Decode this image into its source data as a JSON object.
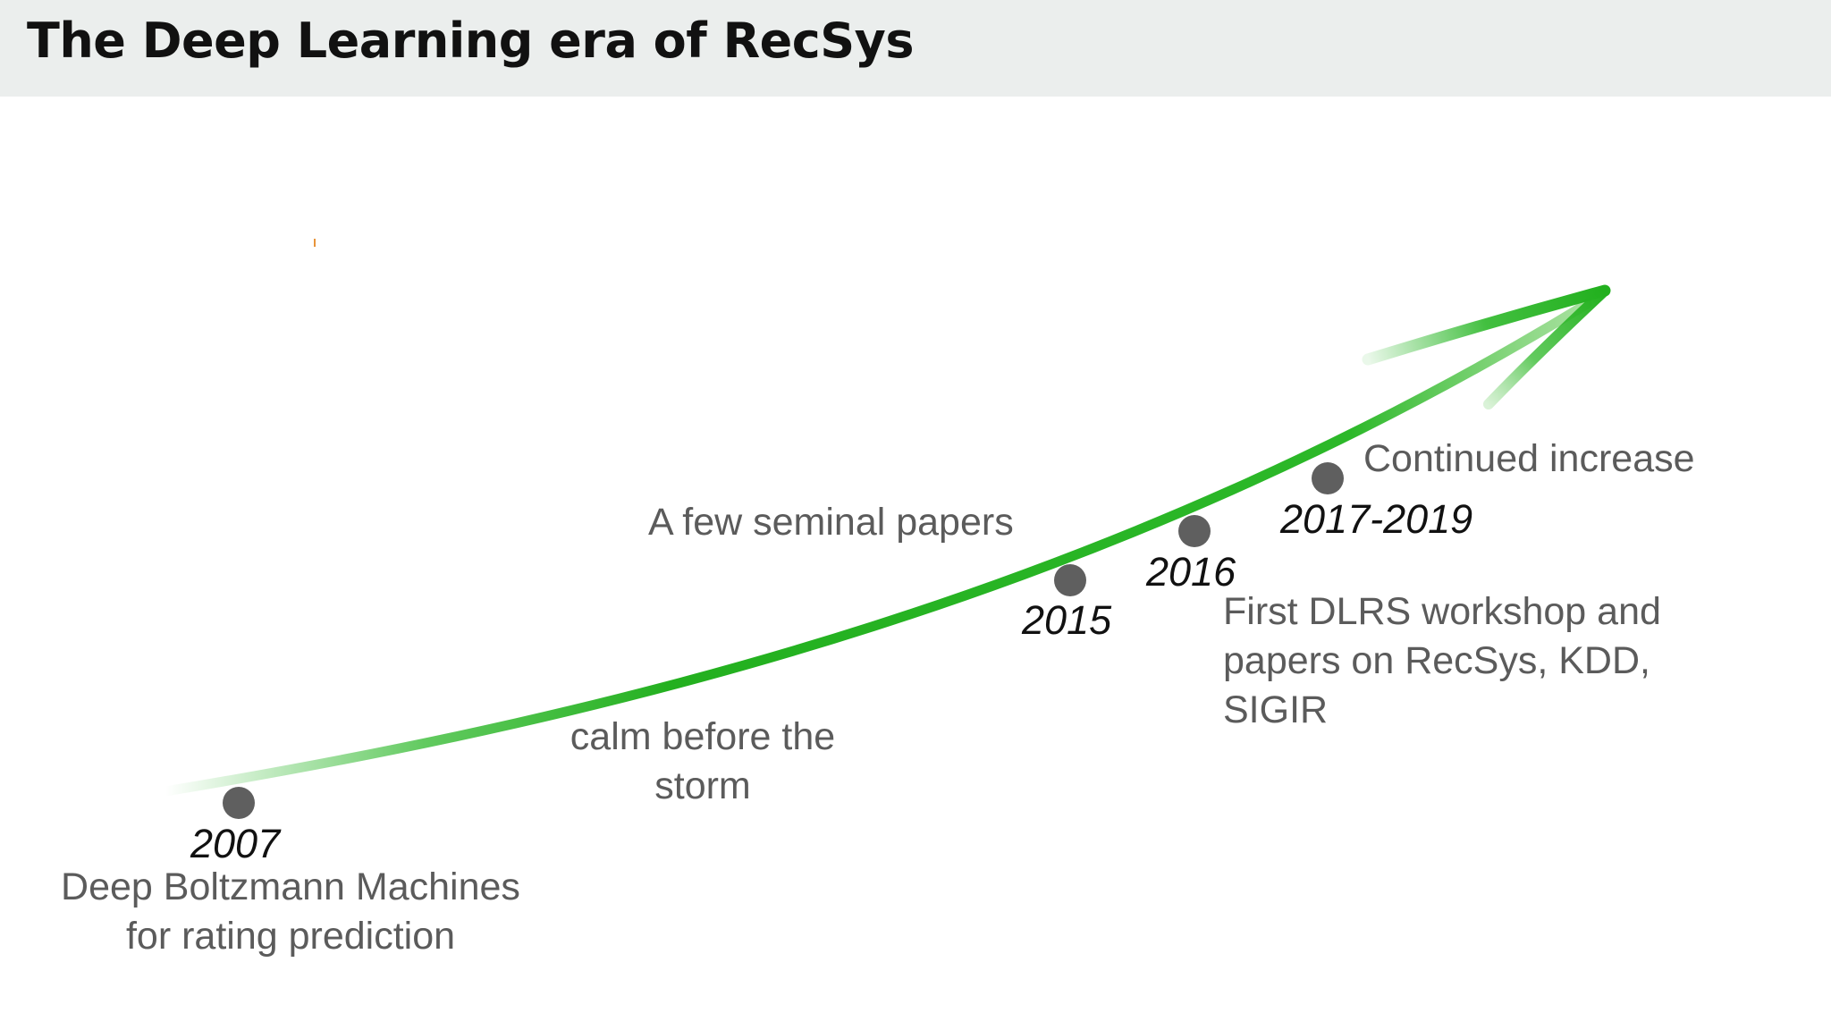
{
  "header": {
    "title": "The Deep Learning era of RecSys"
  },
  "colors": {
    "header_bg": "#ebeeed",
    "arrow": "#2db82a",
    "dot": "#5f5f5f",
    "note_text": "#5b5b5b",
    "year_text": "#111111"
  },
  "milestones": [
    {
      "year": "2007",
      "description_lines": [
        "Deep Boltzmann Machines",
        "for rating prediction"
      ]
    },
    {
      "description_lines": [
        "calm before the",
        "storm"
      ]
    },
    {
      "year": "2015",
      "description_lines": [
        "A few seminal papers"
      ]
    },
    {
      "year": "2016",
      "description_lines": [
        "First DLRS workshop and",
        "papers on RecSys, KDD,",
        "SIGIR"
      ]
    },
    {
      "year": "2017-2019",
      "description_lines": [
        "Continued increase"
      ]
    }
  ]
}
